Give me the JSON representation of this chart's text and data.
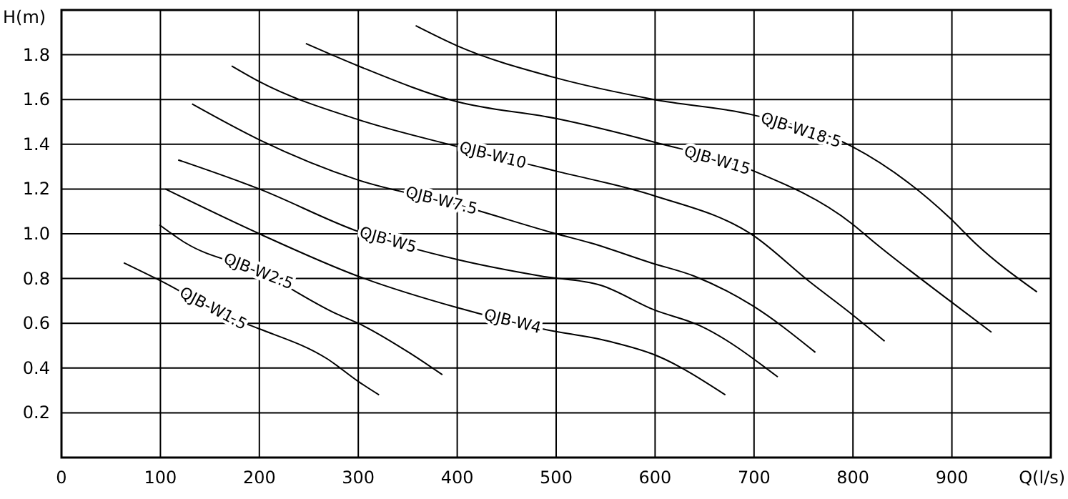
{
  "chart_data": {
    "type": "line",
    "xlabel": "Q(l/s)",
    "ylabel": "H(m)",
    "xlim": [
      0,
      1000
    ],
    "xticks": [
      0,
      100,
      200,
      300,
      400,
      500,
      600,
      700,
      800,
      900
    ],
    "ylim": [
      0,
      2
    ],
    "yticks": [
      {
        "value": 0.2,
        "label": "0.2"
      },
      {
        "value": 0.4,
        "label": "0.4"
      },
      {
        "value": 0.6,
        "label": "0.6"
      },
      {
        "value": 0.8,
        "label": "0.8"
      },
      {
        "value": 1.0,
        "label": "1.0"
      },
      {
        "value": 1.2,
        "label": "1.2"
      },
      {
        "value": 1.4,
        "label": "1.4"
      },
      {
        "value": 1.6,
        "label": "1.6"
      },
      {
        "value": 1.8,
        "label": "1.8"
      }
    ],
    "grid": true,
    "marker": "none",
    "line_style": "solid",
    "series": [
      {
        "name": "QJB-W1.5",
        "color": "#000000",
        "x": [
          63,
          100,
          173,
          200,
          269,
          300,
          321
        ],
        "values": [
          0.87,
          0.79,
          0.62,
          0.575,
          0.44,
          0.34,
          0.28
        ]
      },
      {
        "name": "QJB-W2.5",
        "color": "#000000",
        "x": [
          99,
          125,
          200,
          279,
          300,
          351,
          385
        ],
        "values": [
          1.04,
          0.96,
          0.83,
          0.64,
          0.6,
          0.47,
          0.37
        ]
      },
      {
        "name": "QJB-W4",
        "color": "#000000",
        "x": [
          105,
          200,
          300,
          400,
          486,
          553,
          599,
          671
        ],
        "values": [
          1.2,
          1.0,
          0.81,
          0.67,
          0.575,
          0.52,
          0.46,
          0.28
        ]
      },
      {
        "name": "QJB-W5",
        "color": "#000000",
        "x": [
          118,
          200,
          300,
          400,
          486,
          545,
          599,
          645,
          724
        ],
        "values": [
          1.33,
          1.2,
          1.01,
          0.885,
          0.81,
          0.77,
          0.66,
          0.59,
          0.36
        ]
      },
      {
        "name": "QJB-W7.5",
        "color": "#000000",
        "x": [
          132,
          200,
          300,
          400,
          500,
          534,
          596,
          640,
          698,
          762
        ],
        "values": [
          1.58,
          1.42,
          1.24,
          1.13,
          1.0,
          0.96,
          0.87,
          0.81,
          0.68,
          0.47
        ]
      },
      {
        "name": "QJB-W10",
        "color": "#000000",
        "x": [
          172,
          200,
          300,
          400,
          500,
          599,
          700,
          755,
          799,
          832
        ],
        "values": [
          1.75,
          1.68,
          1.51,
          1.39,
          1.28,
          1.17,
          0.99,
          0.79,
          0.64,
          0.52
        ]
      },
      {
        "name": "QJB-W15",
        "color": "#000000",
        "x": [
          247,
          300,
          400,
          500,
          599,
          700,
          799,
          822,
          898,
          940
        ],
        "values": [
          1.85,
          1.75,
          1.59,
          1.515,
          1.41,
          1.28,
          1.045,
          0.96,
          0.7,
          0.56
        ]
      },
      {
        "name": "QJB-W18.5",
        "color": "#000000",
        "x": [
          358,
          400,
          497,
          599,
          700,
          799,
          898,
          923,
          986
        ],
        "values": [
          1.93,
          1.84,
          1.7,
          1.6,
          1.53,
          1.39,
          1.07,
          0.96,
          0.74
        ]
      }
    ]
  }
}
